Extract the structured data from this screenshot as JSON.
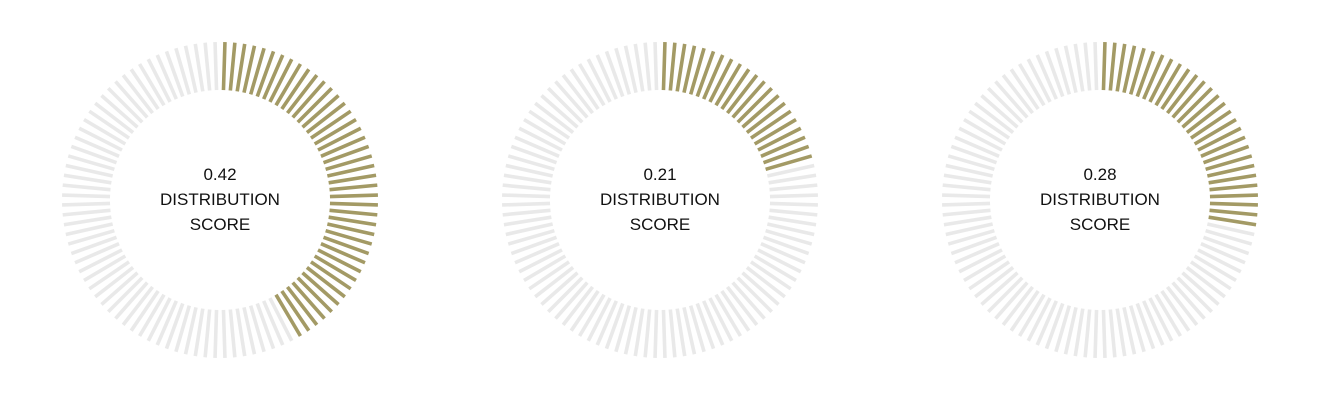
{
  "chart_data": [
    {
      "type": "radial-gauge",
      "value": 0.42,
      "value_label": "0.42",
      "label_line1": "DISTRIBUTION",
      "label_line2": "SCORE",
      "ticks": 100,
      "range": [
        0,
        1
      ]
    },
    {
      "type": "radial-gauge",
      "value": 0.21,
      "value_label": "0.21",
      "label_line1": "DISTRIBUTION",
      "label_line2": "SCORE",
      "ticks": 100,
      "range": [
        0,
        1
      ]
    },
    {
      "type": "radial-gauge",
      "value": 0.28,
      "value_label": "0.28",
      "label_line1": "DISTRIBUTION",
      "label_line2": "SCORE",
      "ticks": 100,
      "range": [
        0,
        1
      ]
    }
  ],
  "colors": {
    "filled": "#a39a65",
    "empty": "#e9e9e9",
    "text": "#111111",
    "background": "#ffffff"
  }
}
